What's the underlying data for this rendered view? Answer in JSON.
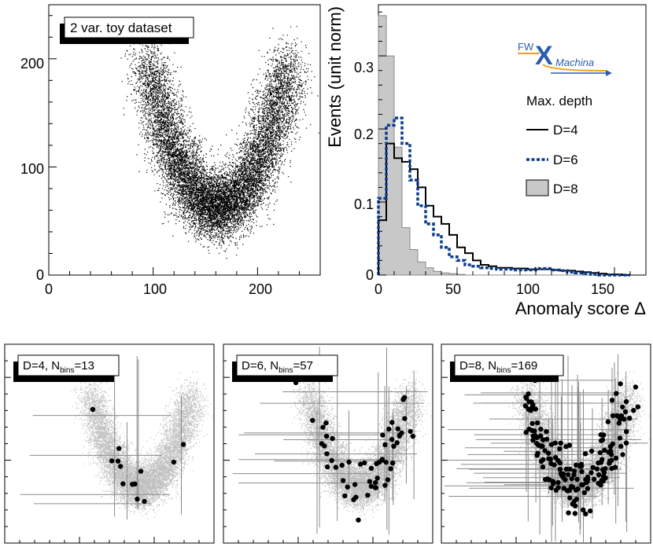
{
  "chart_data": [
    {
      "type": "scatter",
      "title": "2 var. toy dataset",
      "xlabel": "",
      "ylabel": "",
      "xlim": [
        0,
        260
      ],
      "ylim": [
        0,
        250
      ],
      "x_ticks": [
        "0",
        "100",
        "200"
      ],
      "y_ticks": [
        "0",
        "100",
        "200"
      ],
      "description_points": "Dense U-shaped cloud of events; arms near x=95 and x=225 reaching y~210, trough near x=160 at y~65"
    },
    {
      "type": "histogram",
      "xlabel": "Anomaly score Δ",
      "ylabel": "Events (unit norm)",
      "xlim": [
        0,
        170
      ],
      "ylim": [
        0,
        0.37
      ],
      "x_ticks": [
        "0",
        "50",
        "100",
        "150"
      ],
      "y_ticks": [
        "0",
        "0.1",
        "0.2",
        "0.3"
      ],
      "bin_width": 5,
      "legend_title": "Max. depth",
      "logo": {
        "prefix": "FW",
        "main": "X",
        "suffix": "Machina"
      },
      "series": [
        {
          "name": "D=4",
          "style": "solid-black",
          "values": [
            0.075,
            0.18,
            0.16,
            0.155,
            0.145,
            0.12,
            0.095,
            0.08,
            0.07,
            0.055,
            0.038,
            0.03,
            0.02,
            0.014,
            0.012,
            0.01,
            0.01,
            0.009,
            0.009,
            0.008,
            0.008,
            0.008,
            0.007,
            0.006,
            0.006,
            0.005,
            0.004,
            0.003,
            0.002,
            0.001,
            0.001,
            0.0
          ]
        },
        {
          "name": "D=6",
          "style": "dashed-blue",
          "values": [
            0.105,
            0.205,
            0.215,
            0.18,
            0.13,
            0.095,
            0.07,
            0.055,
            0.038,
            0.025,
            0.02,
            0.014,
            0.012,
            0.01,
            0.009,
            0.008,
            0.008,
            0.007,
            0.007,
            0.007,
            0.009,
            0.009,
            0.007,
            0.006,
            0.004,
            0.003,
            0.002,
            0.001,
            0.0,
            0.0,
            0.0,
            0.0
          ]
        },
        {
          "name": "D=8",
          "style": "gray-fill",
          "values": [
            0.355,
            0.3,
            0.175,
            0.065,
            0.035,
            0.018,
            0.01,
            0.005,
            0.003,
            0.002,
            0.001,
            0.0,
            0.0,
            0.0,
            0.0,
            0.0,
            0.0,
            0.0,
            0.0,
            0.0,
            0.0,
            0.0,
            0.0,
            0.0,
            0.0,
            0.0,
            0.0,
            0.0,
            0.0,
            0.0,
            0.0,
            0.0
          ]
        }
      ]
    },
    {
      "type": "scatter",
      "label_main": "D=4, N",
      "label_sub": "bins",
      "label_eq": "=13",
      "background": "toy dataset in gray",
      "highlight_color": "#000000",
      "background_color": "#c8c8c8",
      "n_bins": 13
    },
    {
      "type": "scatter",
      "label_main": "D=6, N",
      "label_sub": "bins",
      "label_eq": "=57",
      "n_bins": 57
    },
    {
      "type": "scatter",
      "label_main": "D=8, N",
      "label_sub": "bins",
      "label_eq": "=169",
      "n_bins": 169
    }
  ],
  "colors": {
    "points": "#000000",
    "gray_points": "#c0c0c0",
    "d6_line": "#0a3c8c",
    "d8_fill": "#c8c8c8",
    "logo_blue": "#2a5db0",
    "logo_orange": "#f2a30f"
  }
}
